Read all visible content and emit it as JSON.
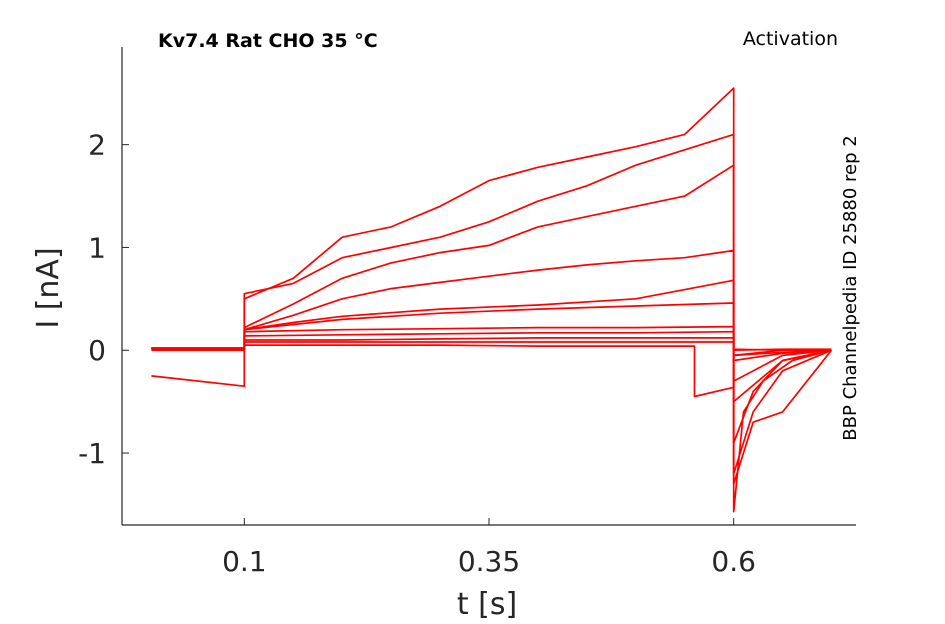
{
  "chart_data": {
    "type": "line",
    "title_left": "Kv7.4  Rat  CHO  35 °C",
    "title_right": "Activation",
    "side_label": "BBP Channelpedia ID 25880 rep 2",
    "xlabel": "t [s]",
    "ylabel": "I [nA]",
    "xlim": [
      -0.025,
      0.725
    ],
    "ylim": [
      -1.7,
      2.95
    ],
    "xticks": [
      0.1,
      0.35,
      0.6
    ],
    "xtick_labels": [
      "0.1",
      "0.35",
      "0.6"
    ],
    "yticks": [
      -1,
      0,
      1,
      2
    ],
    "ytick_labels": [
      "-1",
      "0",
      "1",
      "2"
    ],
    "grid": false,
    "color": "#ff0000",
    "series": [
      {
        "x": [
          0.005,
          0.1,
          0.1,
          0.2,
          0.3,
          0.4,
          0.5,
          0.56,
          0.56,
          0.6,
          0.6,
          0.65,
          0.7
        ],
        "y": [
          0.0,
          0.0,
          0.05,
          0.05,
          0.05,
          0.04,
          0.04,
          0.04,
          -0.45,
          -0.36,
          -0.05,
          0.0,
          0.0
        ]
      },
      {
        "x": [
          0.005,
          0.1,
          0.1,
          0.2,
          0.3,
          0.4,
          0.5,
          0.6,
          0.6,
          0.65,
          0.7
        ],
        "y": [
          0.01,
          0.01,
          0.08,
          0.08,
          0.08,
          0.08,
          0.08,
          0.08,
          0.01,
          0.0,
          0.0
        ]
      },
      {
        "x": [
          0.005,
          0.1,
          0.1,
          0.2,
          0.3,
          0.4,
          0.5,
          0.6,
          0.6,
          0.65,
          0.7
        ],
        "y": [
          0.02,
          0.02,
          0.1,
          0.1,
          0.11,
          0.12,
          0.12,
          0.12,
          0.0,
          0.01,
          0.01
        ]
      },
      {
        "x": [
          0.005,
          0.1,
          0.1,
          0.2,
          0.3,
          0.4,
          0.5,
          0.6,
          0.6,
          0.65,
          0.7
        ],
        "y": [
          0.02,
          0.02,
          0.14,
          0.15,
          0.16,
          0.17,
          0.17,
          0.18,
          -0.05,
          -0.02,
          0.0
        ]
      },
      {
        "x": [
          0.005,
          0.1,
          0.1,
          0.2,
          0.3,
          0.4,
          0.5,
          0.6,
          0.6,
          0.65,
          0.7
        ],
        "y": [
          0.02,
          0.02,
          0.18,
          0.2,
          0.21,
          0.22,
          0.22,
          0.23,
          -0.1,
          -0.03,
          0.0
        ]
      },
      {
        "x": [
          0.005,
          0.1,
          0.1,
          0.15,
          0.2,
          0.3,
          0.4,
          0.5,
          0.6,
          0.6,
          0.65,
          0.7
        ],
        "y": [
          0.02,
          0.02,
          0.2,
          0.25,
          0.3,
          0.36,
          0.4,
          0.43,
          0.46,
          -0.3,
          -0.05,
          0.0
        ]
      },
      {
        "x": [
          0.005,
          0.1,
          0.1,
          0.15,
          0.2,
          0.3,
          0.4,
          0.5,
          0.6,
          0.6,
          0.65,
          0.7
        ],
        "y": [
          0.02,
          0.02,
          0.2,
          0.27,
          0.33,
          0.4,
          0.44,
          0.5,
          0.68,
          -0.5,
          -0.1,
          0.0
        ]
      },
      {
        "x": [
          0.005,
          0.1,
          0.1,
          0.15,
          0.2,
          0.25,
          0.3,
          0.35,
          0.4,
          0.45,
          0.5,
          0.55,
          0.6,
          0.6,
          0.62,
          0.65,
          0.7
        ],
        "y": [
          0.02,
          0.02,
          0.2,
          0.34,
          0.5,
          0.6,
          0.66,
          0.72,
          0.78,
          0.83,
          0.87,
          0.9,
          0.97,
          -0.9,
          -0.4,
          -0.1,
          0.0
        ]
      },
      {
        "x": [
          0.005,
          0.1,
          0.1,
          0.15,
          0.2,
          0.25,
          0.3,
          0.35,
          0.4,
          0.45,
          0.5,
          0.55,
          0.6,
          0.6,
          0.62,
          0.65,
          0.7
        ],
        "y": [
          0.02,
          0.02,
          0.22,
          0.45,
          0.7,
          0.85,
          0.95,
          1.02,
          1.2,
          1.3,
          1.4,
          1.5,
          1.8,
          -1.2,
          -0.6,
          -0.2,
          0.0
        ]
      },
      {
        "x": [
          0.005,
          0.1,
          0.1,
          0.15,
          0.2,
          0.25,
          0.3,
          0.35,
          0.4,
          0.45,
          0.5,
          0.55,
          0.6,
          0.6,
          0.62,
          0.65,
          0.7
        ],
        "y": [
          -0.25,
          -0.35,
          0.55,
          0.65,
          0.9,
          1.0,
          1.1,
          1.25,
          1.45,
          1.6,
          1.8,
          1.95,
          2.1,
          -1.3,
          -0.7,
          -0.6,
          0.0
        ]
      },
      {
        "x": [
          0.005,
          0.1,
          0.1,
          0.15,
          0.2,
          0.25,
          0.3,
          0.35,
          0.4,
          0.45,
          0.5,
          0.55,
          0.6,
          0.6,
          0.61,
          0.63,
          0.66,
          0.7
        ],
        "y": [
          0.02,
          0.02,
          0.5,
          0.7,
          1.1,
          1.2,
          1.4,
          1.65,
          1.78,
          1.88,
          1.98,
          2.1,
          2.55,
          -1.57,
          -0.6,
          -0.3,
          -0.1,
          0.0
        ]
      }
    ]
  }
}
